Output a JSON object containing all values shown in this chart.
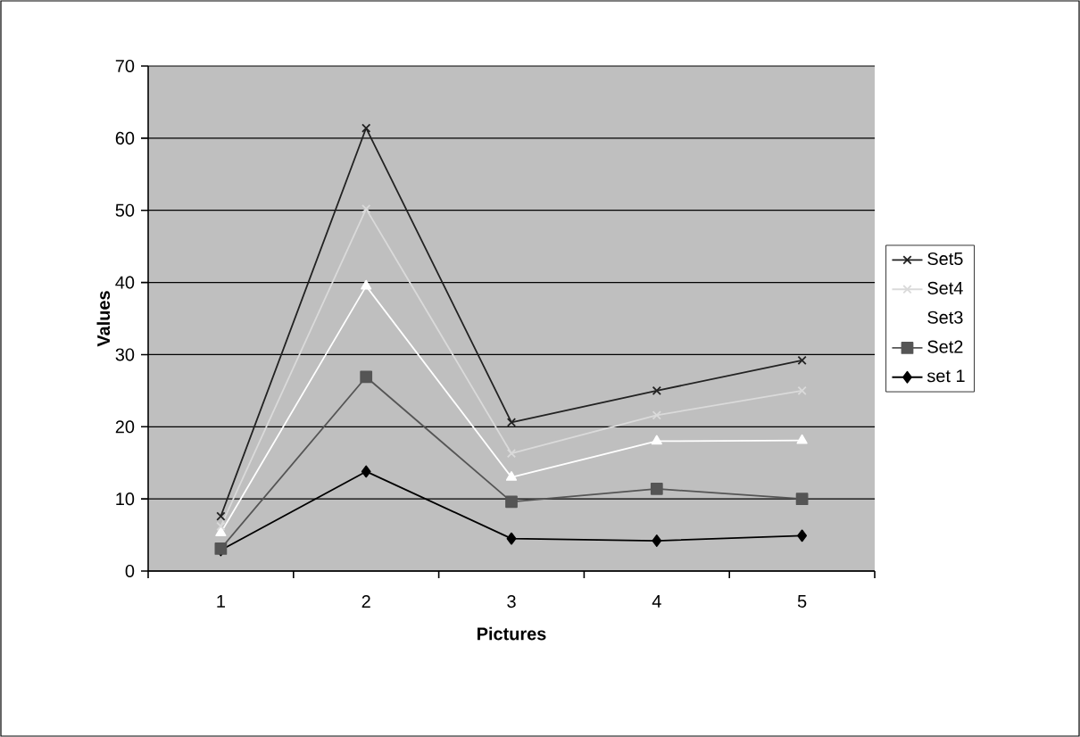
{
  "chart_data": {
    "type": "line",
    "xlabel": "Pictures",
    "ylabel": "Values",
    "categories": [
      "1",
      "2",
      "3",
      "4",
      "5"
    ],
    "ylim": [
      0,
      70
    ],
    "yticks": [
      0,
      10,
      20,
      30,
      40,
      50,
      60,
      70
    ],
    "grid": "y",
    "legend": "right",
    "line_style": "solid",
    "series": [
      {
        "name": "set 1",
        "color": "#000000",
        "marker": "diamond",
        "values": [
          2.9,
          13.8,
          4.5,
          4.2,
          4.9
        ]
      },
      {
        "name": "Set2",
        "color": "#555555",
        "marker": "square",
        "values": [
          3.1,
          26.9,
          9.6,
          11.4,
          10.0
        ]
      },
      {
        "name": "Set3",
        "color": "#ffffff",
        "marker": "triangle",
        "values": [
          5.3,
          39.5,
          13.0,
          18.0,
          18.1
        ]
      },
      {
        "name": "Set4",
        "color": "#dadada",
        "marker": "cross",
        "values": [
          6.2,
          50.2,
          16.3,
          21.6,
          25.0
        ]
      },
      {
        "name": "Set5",
        "color": "#222222",
        "marker": "cross",
        "values": [
          7.6,
          61.4,
          20.6,
          25.0,
          29.2
        ]
      }
    ]
  }
}
